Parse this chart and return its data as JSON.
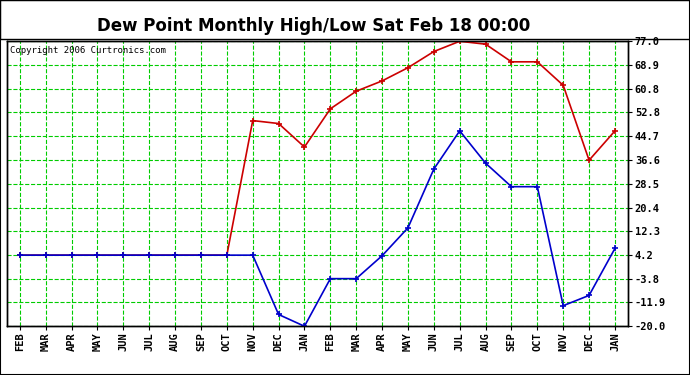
{
  "title": "Dew Point Monthly High/Low Sat Feb 18 00:00",
  "copyright": "Copyright 2006 Curtronics.com",
  "x_labels": [
    "FEB",
    "MAR",
    "APR",
    "MAY",
    "JUN",
    "JUL",
    "AUG",
    "SEP",
    "OCT",
    "NOV",
    "DEC",
    "JAN",
    "FEB",
    "MAR",
    "APR",
    "MAY",
    "JUN",
    "JUL",
    "AUG",
    "SEP",
    "OCT",
    "NOV",
    "DEC",
    "JAN"
  ],
  "high_values": [
    4.2,
    4.2,
    4.2,
    4.2,
    4.2,
    4.2,
    4.2,
    4.2,
    4.2,
    50.0,
    49.0,
    41.0,
    54.0,
    60.0,
    63.5,
    68.0,
    73.5,
    77.0,
    76.0,
    70.0,
    70.0,
    62.0,
    36.5,
    46.5
  ],
  "low_values": [
    4.2,
    4.2,
    4.2,
    4.2,
    4.2,
    4.2,
    4.2,
    4.2,
    4.2,
    4.2,
    -16.0,
    -20.0,
    -3.8,
    -3.8,
    4.0,
    13.5,
    33.5,
    46.5,
    35.5,
    27.5,
    27.5,
    -13.0,
    -9.5,
    6.5
  ],
  "y_ticks": [
    -20.0,
    -11.9,
    -3.8,
    4.2,
    12.3,
    20.4,
    28.5,
    36.6,
    44.7,
    52.8,
    60.8,
    68.9,
    77.0
  ],
  "ylim": [
    -20.0,
    77.0
  ],
  "high_color": "#cc0000",
  "low_color": "#0000cc",
  "grid_color": "#00cc00",
  "bg_color": "#ffffff",
  "title_fontsize": 12,
  "copyright_fontsize": 6.5,
  "axis_label_fontsize": 7.5
}
